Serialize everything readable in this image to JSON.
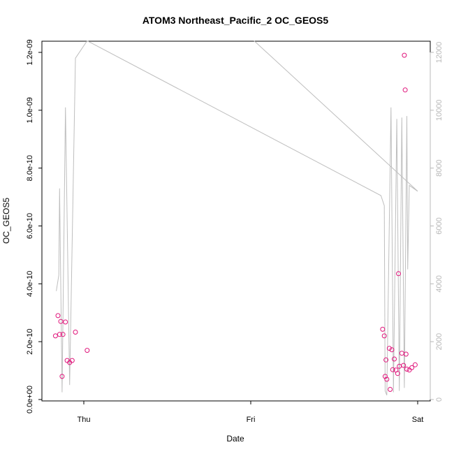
{
  "chart_data": {
    "type": "scatter",
    "title": "ATOM3 Northeast_Pacific_2 OC_GEOS5",
    "xlabel": "Date",
    "ylabel": "OC_GEOS5",
    "x_ticks": [
      "Thu",
      "Fri",
      "Sat"
    ],
    "y_ticks": [
      "0.0e+00",
      "2.0e-10",
      "4.0e-10",
      "6.0e-10",
      "8.0e-10",
      "1.0e-09",
      "1.2e-09"
    ],
    "y_tick_values": [
      0,
      2e-10,
      4e-10,
      6e-10,
      8e-10,
      1e-09,
      1.2e-09
    ],
    "ylim": [
      0,
      1.2e-09
    ],
    "xlim_days": [
      -0.2,
      2.05
    ],
    "y2_ticks": [
      "0",
      "2000",
      "4000",
      "6000",
      "8000",
      "10000",
      "12000"
    ],
    "y2_tick_values": [
      0,
      2000,
      4000,
      6000,
      8000,
      10000,
      12000
    ],
    "y2lim": [
      0,
      12000
    ],
    "colors": {
      "points": "#e0147a",
      "line": "#bebebe",
      "axis": "#000000",
      "right_axis": "#b8b8b8"
    },
    "series": [
      {
        "kind": "points",
        "axis": "left",
        "points": [
          {
            "x": -0.17,
            "y": 2.2e-10
          },
          {
            "x": -0.155,
            "y": 2.9e-10
          },
          {
            "x": -0.145,
            "y": 2.25e-10
          },
          {
            "x": -0.138,
            "y": 2.7e-10
          },
          {
            "x": -0.13,
            "y": 8e-11
          },
          {
            "x": -0.125,
            "y": 2.25e-10
          },
          {
            "x": -0.11,
            "y": 2.68e-10
          },
          {
            "x": -0.1,
            "y": 1.35e-10
          },
          {
            "x": -0.085,
            "y": 1.28e-10
          },
          {
            "x": -0.07,
            "y": 1.35e-10
          },
          {
            "x": -0.05,
            "y": 2.33e-10
          },
          {
            "x": 0.02,
            "y": 1.7e-10
          },
          {
            "x": 1.79,
            "y": 2.43e-10
          },
          {
            "x": 1.8,
            "y": 2.2e-10
          },
          {
            "x": 1.805,
            "y": 8e-11
          },
          {
            "x": 1.81,
            "y": 1.37e-10
          },
          {
            "x": 1.815,
            "y": 7e-11
          },
          {
            "x": 1.83,
            "y": 1.77e-10
          },
          {
            "x": 1.835,
            "y": 3.5e-11
          },
          {
            "x": 1.845,
            "y": 1.72e-10
          },
          {
            "x": 1.85,
            "y": 1.03e-10
          },
          {
            "x": 1.86,
            "y": 1.4e-10
          },
          {
            "x": 1.87,
            "y": 1.02e-10
          },
          {
            "x": 1.88,
            "y": 9e-11
          },
          {
            "x": 1.885,
            "y": 4.35e-10
          },
          {
            "x": 1.89,
            "y": 1.15e-10
          },
          {
            "x": 1.905,
            "y": 1.6e-10
          },
          {
            "x": 1.915,
            "y": 1.18e-10
          },
          {
            "x": 1.92,
            "y": 1.19e-09
          },
          {
            "x": 1.925,
            "y": 1.07e-09
          },
          {
            "x": 1.93,
            "y": 1.57e-10
          },
          {
            "x": 1.935,
            "y": 1.05e-10
          },
          {
            "x": 1.95,
            "y": 1.02e-10
          },
          {
            "x": 1.965,
            "y": 1.1e-10
          },
          {
            "x": 1.985,
            "y": 1.2e-10
          }
        ]
      },
      {
        "kind": "line",
        "axis": "right",
        "points": [
          {
            "x": -0.165,
            "y": 3750
          },
          {
            "x": -0.15,
            "y": 4300
          },
          {
            "x": -0.145,
            "y": 7300
          },
          {
            "x": -0.13,
            "y": 250
          },
          {
            "x": -0.11,
            "y": 10100
          },
          {
            "x": -0.085,
            "y": 500
          },
          {
            "x": -0.05,
            "y": 11800
          },
          {
            "x": 0.02,
            "y": 12400
          },
          {
            "x": 1.78,
            "y": 7050
          },
          {
            "x": 1.8,
            "y": 6700
          },
          {
            "x": 1.805,
            "y": 300
          },
          {
            "x": 1.815,
            "y": 150
          },
          {
            "x": 1.84,
            "y": 10100
          },
          {
            "x": 1.855,
            "y": 250
          },
          {
            "x": 1.875,
            "y": 9700
          },
          {
            "x": 1.89,
            "y": 300
          },
          {
            "x": 1.905,
            "y": 9750
          },
          {
            "x": 1.92,
            "y": 400
          },
          {
            "x": 1.935,
            "y": 9800
          },
          {
            "x": 1.94,
            "y": 4500
          },
          {
            "x": 1.95,
            "y": 7400
          },
          {
            "x": 2.0,
            "y": 7200
          },
          {
            "x": 1.02,
            "y": 12400
          }
        ]
      }
    ]
  }
}
